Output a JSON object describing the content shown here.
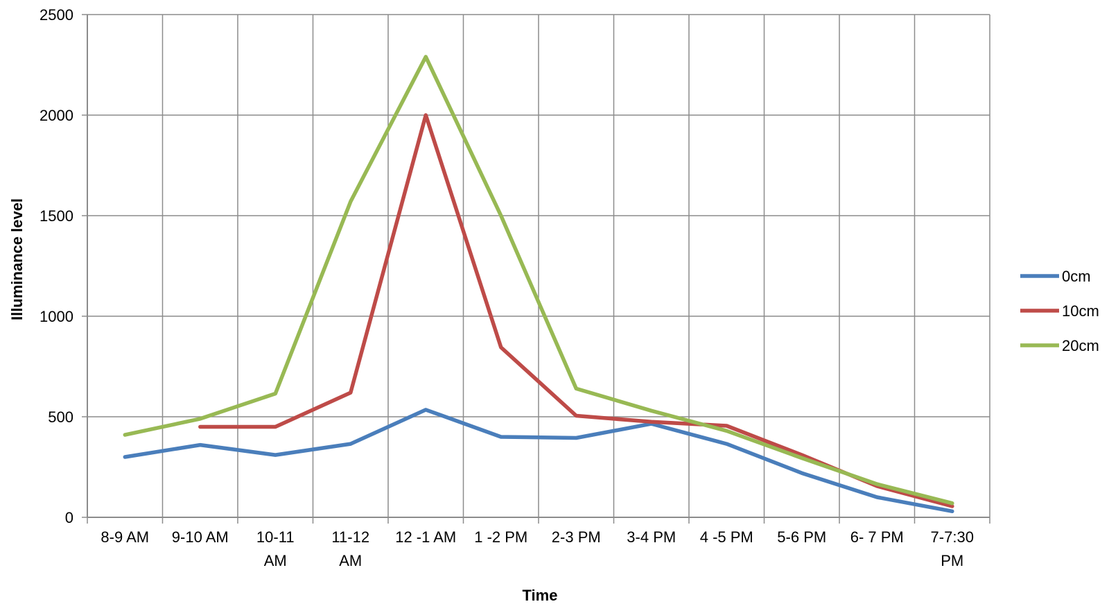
{
  "chart_data": {
    "type": "line",
    "title": "",
    "xlabel": "Time",
    "ylabel": "Illuminance level",
    "ylim": [
      0,
      2500
    ],
    "yticks": [
      0,
      500,
      1000,
      1500,
      2000,
      2500
    ],
    "grid": true,
    "legend_position": "right",
    "categories": [
      [
        "8-9 AM"
      ],
      [
        "9-10 AM"
      ],
      [
        "10-11",
        "AM"
      ],
      [
        "11-12",
        "AM"
      ],
      [
        "12 -1 AM"
      ],
      [
        "1 -2 PM"
      ],
      [
        "2-3 PM"
      ],
      [
        "3-4 PM"
      ],
      [
        "4 -5 PM"
      ],
      [
        "5-6 PM"
      ],
      [
        "6- 7 PM"
      ],
      [
        "7-7:30",
        "PM"
      ]
    ],
    "series": [
      {
        "name": "0cm",
        "color": "#4a7ebb",
        "values": [
          300,
          360,
          310,
          365,
          535,
          400,
          395,
          465,
          365,
          220,
          100,
          30
        ]
      },
      {
        "name": "10cm",
        "color": "#be4b48",
        "values": [
          null,
          450,
          450,
          620,
          2000,
          845,
          505,
          475,
          455,
          310,
          155,
          55
        ]
      },
      {
        "name": "20cm",
        "color": "#98b954",
        "values": [
          410,
          490,
          615,
          1570,
          2290,
          1500,
          640,
          530,
          430,
          295,
          165,
          70
        ]
      }
    ]
  }
}
